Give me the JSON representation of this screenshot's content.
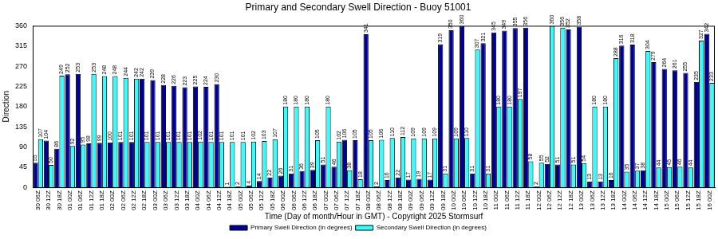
{
  "chart_data": {
    "type": "bar",
    "title": "Primary and Secondary Swell Direction - Buoy 51001",
    "x_label": "Time (Day of month/Hour in GMT) - Copyright 2025 Stormsurf",
    "y_label": "Direction",
    "categories": [
      "30 06Z",
      "30 12Z",
      "30 18Z",
      "01 00Z",
      "01 06Z",
      "01 12Z",
      "01 18Z",
      "02 00Z",
      "02 06Z",
      "02 12Z",
      "02 18Z",
      "03 00Z",
      "03 06Z",
      "03 12Z",
      "03 18Z",
      "04 00Z",
      "04 06Z",
      "04 12Z",
      "04 18Z",
      "05 00Z",
      "05 06Z",
      "05 12Z",
      "05 18Z",
      "06 00Z",
      "06 06Z",
      "06 12Z",
      "06 18Z",
      "07 00Z",
      "07 06Z",
      "07 12Z",
      "07 18Z",
      "08 00Z",
      "08 06Z",
      "08 12Z",
      "08 18Z",
      "09 00Z",
      "09 06Z",
      "09 12Z",
      "09 18Z",
      "10 00Z",
      "10 06Z",
      "10 12Z",
      "10 18Z",
      "11 00Z",
      "11 06Z",
      "11 12Z",
      "11 18Z",
      "12 00Z",
      "12 06Z",
      "12 12Z",
      "12 18Z",
      "13 00Z",
      "13 06Z",
      "13 12Z",
      "13 18Z",
      "14 00Z",
      "14 06Z",
      "14 12Z",
      "14 18Z",
      "15 00Z",
      "15 06Z",
      "15 12Z",
      "15 18Z",
      "16 00Z"
    ],
    "series": [
      {
        "name": "Primary Swell Direction (in degrees)",
        "color": "#000099",
        "values": [
          55,
          104,
          86,
          252,
          253,
          98,
          99,
          100,
          101,
          101,
          242,
          239,
          228,
          226,
          223,
          225,
          224,
          230,
          1,
          2,
          4,
          14,
          22,
          26,
          31,
          36,
          39,
          51,
          46,
          106,
          105,
          341,
          2,
          16,
          22,
          17,
          19,
          17,
          319,
          350,
          360,
          31,
          321,
          345,
          349,
          355,
          356,
          2,
          52,
          51,
          352,
          358,
          13,
          13,
          16,
          316,
          318,
          38,
          279,
          264,
          261,
          255,
          235,
          342
        ]
      },
      {
        "name": "Secondary Swell Direction (in degrees)",
        "color": "#33ffff",
        "values": [
          107,
          50,
          249,
          92,
          95,
          253,
          248,
          248,
          244,
          242,
          101,
          101,
          101,
          101,
          101,
          102,
          101,
          101,
          101,
          101,
          102,
          103,
          107,
          180,
          180,
          180,
          105,
          180,
          102,
          38,
          18,
          105,
          106,
          110,
          112,
          109,
          109,
          109,
          31,
          109,
          110,
          307,
          31,
          180,
          180,
          197,
          58,
          55,
          360,
          356,
          51,
          54,
          180,
          180,
          288,
          35,
          37,
          304,
          44,
          45,
          46,
          44,
          327,
          233
        ]
      }
    ],
    "ylim": [
      0,
      360
    ],
    "yticks": [
      0,
      45,
      90,
      135,
      180,
      225,
      270,
      315,
      360
    ],
    "grid": false,
    "legend": "bottom",
    "data_labels": true
  }
}
